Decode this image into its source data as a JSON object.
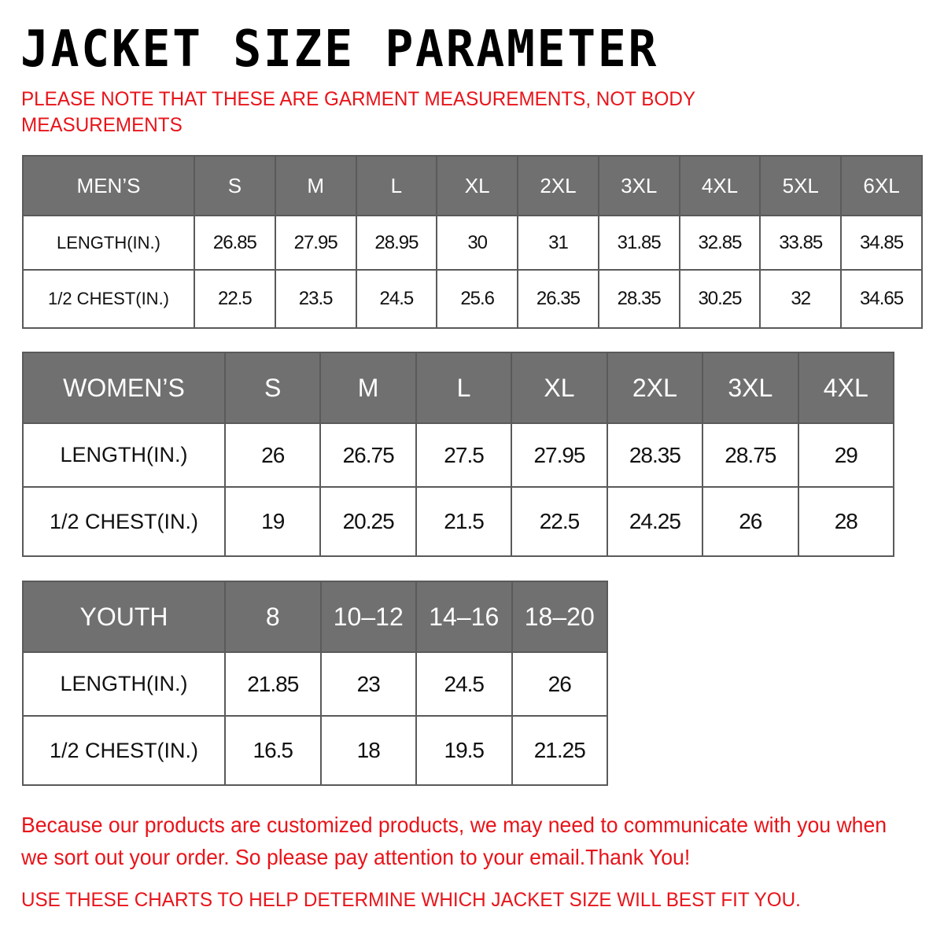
{
  "title": "JACKET SIZE PARAMETER",
  "note": "PLEASE NOTE THAT THESE ARE GARMENT MEASUREMENTS, NOT BODY MEASUREMENTS",
  "colors": {
    "header_bg": "#707070",
    "accent_red": "#e8141a"
  },
  "tables": [
    {
      "name": "MEN’S",
      "sizes": [
        "S",
        "M",
        "L",
        "XL",
        "2XL",
        "3XL",
        "4XL",
        "5XL",
        "6XL"
      ],
      "rows": [
        {
          "label": "LENGTH(IN.)",
          "values": [
            "26.85",
            "27.95",
            "28.95",
            "30",
            "31",
            "31.85",
            "32.85",
            "33.85",
            "34.85"
          ]
        },
        {
          "label": "1/2 CHEST(IN.)",
          "values": [
            "22.5",
            "23.5",
            "24.5",
            "25.6",
            "26.35",
            "28.35",
            "30.25",
            "32",
            "34.65"
          ]
        }
      ]
    },
    {
      "name": "WOMEN’S",
      "sizes": [
        "S",
        "M",
        "L",
        "XL",
        "2XL",
        "3XL",
        "4XL"
      ],
      "rows": [
        {
          "label": "LENGTH(IN.)",
          "values": [
            "26",
            "26.75",
            "27.5",
            "27.95",
            "28.35",
            "28.75",
            "29"
          ]
        },
        {
          "label": "1/2 CHEST(IN.)",
          "values": [
            "19",
            "20.25",
            "21.5",
            "22.5",
            "24.25",
            "26",
            "28"
          ]
        }
      ]
    },
    {
      "name": "YOUTH",
      "sizes": [
        "8",
        "10–12",
        "14–16",
        "18–20"
      ],
      "rows": [
        {
          "label": "LENGTH(IN.)",
          "values": [
            "21.85",
            "23",
            "24.5",
            "26"
          ]
        },
        {
          "label": "1/2 CHEST(IN.)",
          "values": [
            "16.5",
            "18",
            "19.5",
            "21.25"
          ]
        }
      ]
    }
  ],
  "footer": "Because our products are customized products, we may need to communicate with you when we sort out your order. So please pay attention to your email.Thank You!",
  "footer2": "USE THESE CHARTS TO HELP DETERMINE WHICH JACKET SIZE WILL BEST FIT YOU."
}
